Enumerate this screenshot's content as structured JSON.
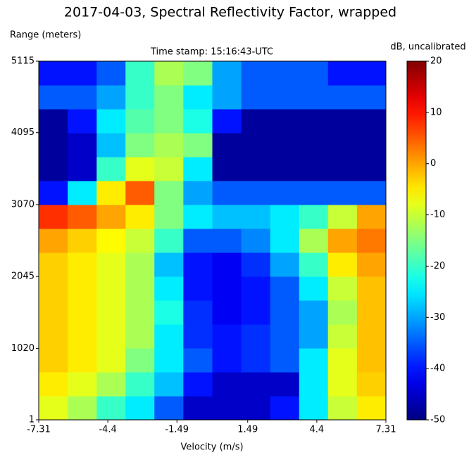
{
  "chart_data": {
    "type": "heatmap",
    "title": "2017-04-03, Spectral Reflectivity Factor, wrapped",
    "subtitle": "Time stamp: 15:16:43-UTC",
    "xlabel": "Velocity (m/s)",
    "ylabel": "Range (meters)",
    "colorbar_label": "dB, uncalibrated",
    "colormap": "jet",
    "x": [
      -6.7,
      -5.48,
      -4.26,
      -3.05,
      -1.83,
      -0.61,
      0.61,
      1.83,
      3.05,
      4.26,
      5.48,
      6.7
    ],
    "y": [
      171,
      512,
      853,
      1194,
      1535,
      1876,
      2217,
      2558,
      2899,
      3240,
      3581,
      3922,
      4263,
      4604,
      4945
    ],
    "z": [
      [
        -8,
        -12,
        -20,
        -25,
        -35,
        -45,
        -45,
        -45,
        -40,
        -25,
        -10,
        -5
      ],
      [
        -5,
        -8,
        -12,
        -20,
        -28,
        -40,
        -45,
        -45,
        -45,
        -25,
        -8,
        -3
      ],
      [
        -3,
        -5,
        -8,
        -15,
        -25,
        -35,
        -40,
        -38,
        -35,
        -25,
        -8,
        -2
      ],
      [
        -3,
        -5,
        -8,
        -12,
        -25,
        -38,
        -40,
        -38,
        -35,
        -30,
        -10,
        -2
      ],
      [
        -3,
        -5,
        -8,
        -12,
        -22,
        -38,
        -42,
        -40,
        -35,
        -30,
        -12,
        -2
      ],
      [
        -3,
        -5,
        -8,
        -12,
        -25,
        -40,
        -42,
        -40,
        -35,
        -25,
        -10,
        -2
      ],
      [
        -3,
        -5,
        -8,
        -12,
        -28,
        -40,
        -42,
        -38,
        -30,
        -20,
        -5,
        0
      ],
      [
        0,
        -3,
        -6,
        -10,
        -20,
        -35,
        -35,
        -32,
        -25,
        -12,
        0,
        3
      ],
      [
        8,
        5,
        0,
        -5,
        -15,
        -25,
        -28,
        -28,
        -25,
        -20,
        -10,
        0
      ],
      [
        -40,
        -25,
        -5,
        5,
        -15,
        -30,
        -35,
        -35,
        -35,
        -35,
        -35,
        -35
      ],
      [
        -48,
        -45,
        -20,
        -8,
        -10,
        -25,
        -48,
        -48,
        -48,
        -48,
        -48,
        -48
      ],
      [
        -48,
        -45,
        -28,
        -15,
        -12,
        -15,
        -48,
        -48,
        -48,
        -48,
        -48,
        -48
      ],
      [
        -48,
        -40,
        -25,
        -18,
        -15,
        -22,
        -40,
        -48,
        -48,
        -48,
        -48,
        -48
      ],
      [
        -35,
        -35,
        -30,
        -20,
        -15,
        -25,
        -30,
        -35,
        -35,
        -35,
        -35,
        -35
      ],
      [
        -40,
        -40,
        -35,
        -20,
        -12,
        -15,
        -30,
        -35,
        -35,
        -35,
        -40,
        -40
      ]
    ],
    "xlim": [
      -7.31,
      7.31
    ],
    "xticks": [
      -7.31,
      -4.4,
      -1.49,
      1.49,
      4.4,
      7.31
    ],
    "ylim": [
      1,
      5115
    ],
    "yticks": [
      1,
      1020,
      2045,
      3070,
      4095,
      5115
    ],
    "zlim": [
      -50,
      20
    ],
    "zticks": [
      -50,
      -40,
      -30,
      -20,
      -10,
      0,
      10,
      20
    ]
  }
}
